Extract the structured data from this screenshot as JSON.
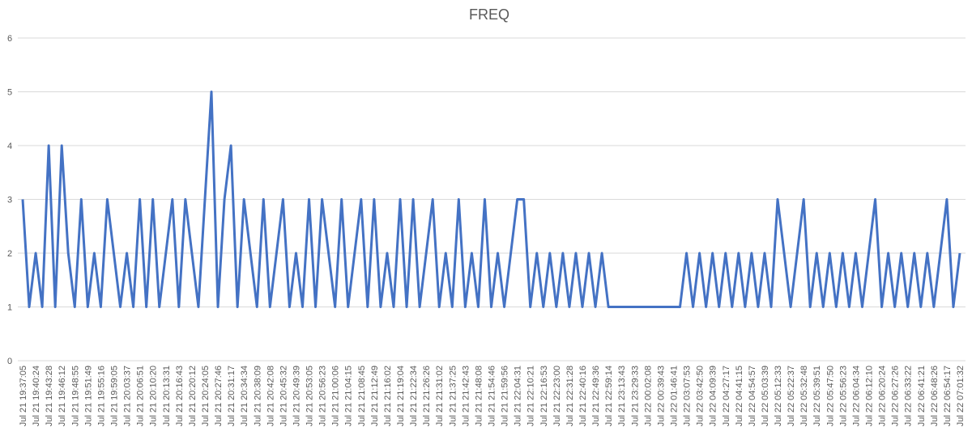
{
  "chart_data": {
    "type": "line",
    "title": "FREQ",
    "categories": [
      "Jul 21 19:37:05",
      null,
      "Jul 21 19:40:24",
      null,
      "Jul 21 19:43:28",
      null,
      "Jul 21 19:46:12",
      null,
      "Jul 21 19:48:55",
      null,
      "Jul 21 19:51:49",
      null,
      "Jul 21 19:55:16",
      null,
      "Jul 21 19:59:05",
      null,
      "Jul 21 20:03:37",
      null,
      "Jul 21 20:06:51",
      null,
      "Jul 21 20:10:20",
      null,
      "Jul 21 20:13:31",
      null,
      "Jul 21 20:16:43",
      null,
      "Jul 21 20:20:12",
      null,
      "Jul 21 20:24:05",
      null,
      "Jul 21 20:27:46",
      null,
      "Jul 21 20:31:17",
      null,
      "Jul 21 20:34:34",
      null,
      "Jul 21 20:38:09",
      null,
      "Jul 21 20:42:08",
      null,
      "Jul 21 20:45:32",
      null,
      "Jul 21 20:49:39",
      null,
      "Jul 21 20:53:05",
      null,
      "Jul 21 20:56:23",
      null,
      "Jul 21 21:00:06",
      null,
      "Jul 21 21:04:15",
      null,
      "Jul 21 21:08:45",
      null,
      "Jul 21 21:12:49",
      null,
      "Jul 21 21:16:02",
      null,
      "Jul 21 21:19:04",
      null,
      "Jul 21 21:22:34",
      null,
      "Jul 21 21:26:26",
      null,
      "Jul 21 21:31:02",
      null,
      "Jul 21 21:37:25",
      null,
      "Jul 21 21:42:43",
      null,
      "Jul 21 21:48:08",
      null,
      "Jul 21 21:54:46",
      null,
      "Jul 21 21:59:56",
      null,
      "Jul 21 22:04:31",
      null,
      "Jul 21 22:10:21",
      null,
      "Jul 21 22:16:53",
      null,
      "Jul 21 22:23:00",
      null,
      "Jul 21 22:31:28",
      null,
      "Jul 21 22:40:16",
      null,
      "Jul 21 22:49:36",
      null,
      "Jul 21 22:59:14",
      null,
      "Jul 21 23:13:43",
      null,
      "Jul 21 23:29:33",
      null,
      "Jul 22 00:02:08",
      null,
      "Jul 22 00:39:43",
      null,
      "Jul 22 01:46:41",
      null,
      "Jul 22 03:07:53",
      null,
      "Jul 22 03:42:50",
      null,
      "Jul 22 04:09:39",
      null,
      "Jul 22 04:27:17",
      null,
      "Jul 22 04:41:15",
      null,
      "Jul 22 04:54:57",
      null,
      "Jul 22 05:03:39",
      null,
      "Jul 22 05:12:33",
      null,
      "Jul 22 05:22:37",
      null,
      "Jul 22 05:32:48",
      null,
      "Jul 22 05:39:51",
      null,
      "Jul 22 05:47:50",
      null,
      "Jul 22 05:56:23",
      null,
      "Jul 22 06:04:34",
      null,
      "Jul 22 06:12:10",
      null,
      "Jul 22 06:20:24",
      null,
      "Jul 22 06:27:26",
      null,
      "Jul 22 06:33:22",
      null,
      "Jul 22 06:41:21",
      null,
      "Jul 22 06:48:26",
      null,
      "Jul 22 06:54:17",
      null,
      "Jul 22 07:01:32"
    ],
    "series": [
      {
        "name": "FREQ",
        "color": "#4472c4",
        "values": [
          3,
          1,
          2,
          1,
          4,
          1,
          4,
          2,
          1,
          3,
          1,
          2,
          1,
          3,
          2,
          1,
          2,
          1,
          3,
          1,
          3,
          1,
          2,
          3,
          1,
          3,
          2,
          1,
          3,
          5,
          1,
          3,
          4,
          1,
          3,
          2,
          1,
          3,
          1,
          2,
          3,
          1,
          2,
          1,
          3,
          1,
          3,
          2,
          1,
          3,
          1,
          2,
          3,
          1,
          3,
          1,
          2,
          1,
          3,
          1,
          3,
          1,
          2,
          3,
          1,
          2,
          1,
          3,
          1,
          2,
          1,
          3,
          1,
          2,
          1,
          2,
          3,
          3,
          1,
          2,
          1,
          2,
          1,
          2,
          1,
          2,
          1,
          2,
          1,
          2,
          1,
          1,
          1,
          1,
          1,
          1,
          1,
          1,
          1,
          1,
          1,
          1,
          2,
          1,
          2,
          1,
          2,
          1,
          2,
          1,
          2,
          1,
          2,
          1,
          2,
          1,
          3,
          2,
          1,
          2,
          3,
          1,
          2,
          1,
          2,
          1,
          2,
          1,
          2,
          1,
          2,
          3,
          1,
          2,
          1,
          2,
          1,
          2,
          1,
          2,
          1,
          2,
          3,
          1,
          2
        ]
      }
    ],
    "ylim": [
      0,
      6
    ],
    "yticks": [
      0,
      1,
      2,
      3,
      4,
      5,
      6
    ],
    "grid": true
  }
}
